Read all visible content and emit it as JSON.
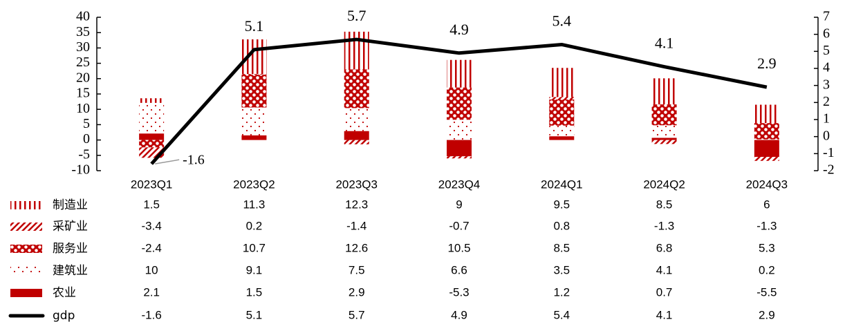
{
  "chart_data": {
    "type": "bar",
    "categories": [
      "2023Q1",
      "2023Q2",
      "2023Q3",
      "2023Q4",
      "2024Q1",
      "2024Q2",
      "2024Q3"
    ],
    "series": [
      {
        "name": "制造业",
        "color": "#c00000",
        "values": [
          1.5,
          11.3,
          12.3,
          9,
          9.5,
          8.5,
          6
        ]
      },
      {
        "name": "采矿业",
        "color": "#c00000",
        "values": [
          -3.4,
          0.2,
          -1.4,
          -0.7,
          0.8,
          -1.3,
          -1.3
        ]
      },
      {
        "name": "服务业",
        "color": "#c00000",
        "values": [
          -2.4,
          10.7,
          12.6,
          10.5,
          8.5,
          6.8,
          5.3
        ]
      },
      {
        "name": "建筑业",
        "color": "#c00000",
        "values": [
          10,
          9.1,
          7.5,
          6.6,
          3.5,
          4.1,
          0.2
        ]
      },
      {
        "name": "农业",
        "color": "#c00000",
        "values": [
          2.1,
          1.5,
          2.9,
          -5.3,
          1.2,
          0.7,
          -5.5
        ]
      },
      {
        "name": "gdp",
        "color": "#000000",
        "axis": "y2",
        "values": [
          -1.6,
          5.1,
          5.7,
          4.9,
          5.4,
          4.1,
          2.9
        ]
      }
    ],
    "ylim": [
      -10,
      40
    ],
    "yticks": [
      -10,
      -5,
      0,
      5,
      10,
      15,
      20,
      25,
      30,
      35,
      40
    ],
    "y2lim": [
      -2,
      7
    ],
    "y2ticks": [
      -2,
      -1,
      0,
      1,
      2,
      3,
      4,
      5,
      6,
      7
    ]
  }
}
